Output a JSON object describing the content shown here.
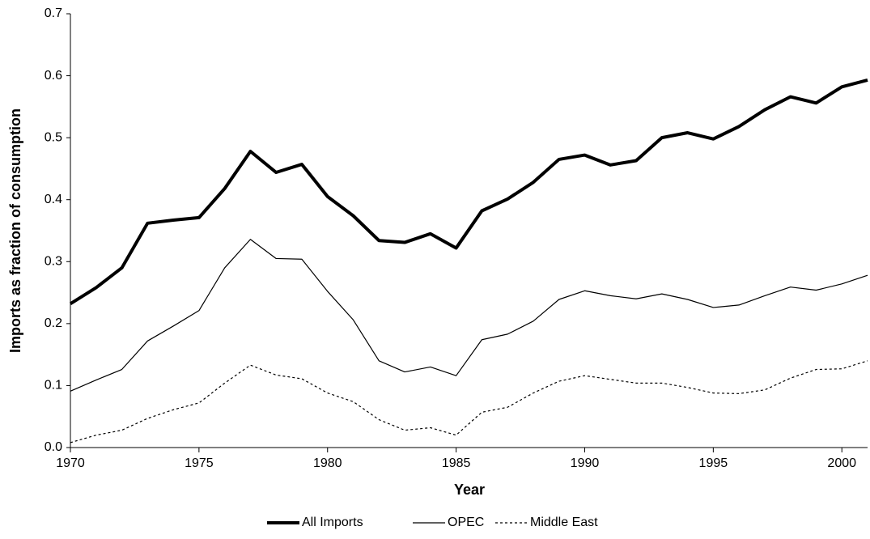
{
  "chart_data": {
    "type": "line",
    "xlabel": "Year",
    "ylabel": "Imports as fraction of consumption",
    "x": [
      1970,
      1971,
      1972,
      1973,
      1974,
      1975,
      1976,
      1977,
      1978,
      1979,
      1980,
      1981,
      1982,
      1983,
      1984,
      1985,
      1986,
      1987,
      1988,
      1989,
      1990,
      1991,
      1992,
      1993,
      1994,
      1995,
      1996,
      1997,
      1998,
      1999,
      2000,
      2001
    ],
    "series": [
      {
        "name": "All Imports",
        "color": "#000000",
        "width": 4,
        "dash": "none",
        "values": [
          0.232,
          0.258,
          0.29,
          0.362,
          0.367,
          0.371,
          0.418,
          0.478,
          0.444,
          0.457,
          0.405,
          0.374,
          0.334,
          0.331,
          0.345,
          0.322,
          0.382,
          0.401,
          0.428,
          0.465,
          0.472,
          0.456,
          0.463,
          0.5,
          0.508,
          0.498,
          0.518,
          0.545,
          0.566,
          0.556,
          0.582,
          0.593
        ]
      },
      {
        "name": "OPEC",
        "color": "#000000",
        "width": 1.2,
        "dash": "none",
        "values": [
          0.091,
          0.109,
          0.126,
          0.172,
          0.196,
          0.221,
          0.29,
          0.336,
          0.305,
          0.304,
          0.252,
          0.206,
          0.14,
          0.122,
          0.13,
          0.116,
          0.174,
          0.183,
          0.204,
          0.239,
          0.253,
          0.245,
          0.24,
          0.248,
          0.239,
          0.226,
          0.23,
          0.245,
          0.259,
          0.254,
          0.264,
          0.278
        ]
      },
      {
        "name": "Middle East",
        "color": "#000000",
        "width": 1.2,
        "dash": "3,3",
        "values": [
          0.008,
          0.02,
          0.028,
          0.047,
          0.061,
          0.072,
          0.104,
          0.133,
          0.117,
          0.111,
          0.088,
          0.074,
          0.045,
          0.028,
          0.032,
          0.02,
          0.057,
          0.065,
          0.088,
          0.107,
          0.116,
          0.11,
          0.104,
          0.104,
          0.097,
          0.088,
          0.087,
          0.093,
          0.112,
          0.126,
          0.127,
          0.14
        ]
      }
    ],
    "xlim": [
      1970,
      2001
    ],
    "xticks": [
      1970,
      1975,
      1980,
      1985,
      1990,
      1995,
      2000
    ],
    "ylim": [
      0,
      0.7
    ],
    "yticks": [
      {
        "value": 0,
        "label": "0.0"
      },
      0.1,
      0.2,
      0.3,
      0.4,
      0.5,
      0.6,
      0.7
    ],
    "grid": false,
    "legend": "bottom"
  }
}
